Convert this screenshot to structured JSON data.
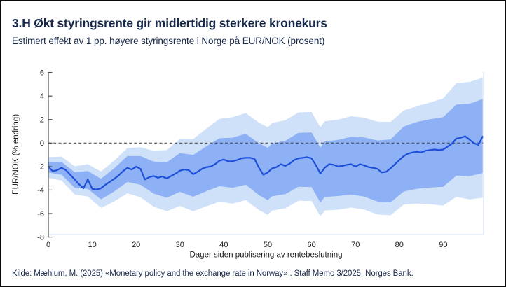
{
  "header": {
    "title": "3.H Økt styringsrente gir midlertidig sterkere kronekurs",
    "subtitle": "Estimert effekt av 1 pp. høyere styringsrente i Norge på EUR/NOK (prosent)"
  },
  "footer": {
    "source": "Kilde: Mæhlum, M. (2025) «Monetary policy and the exchange rate in Norway» . Staff Memo 3/2025. Norges Bank."
  },
  "colors": {
    "median_line": "#1d4fd8",
    "inner_band": "#8db1f4",
    "outer_band": "#cfe0f9",
    "zero_line": "#3c3c3c",
    "axis": "#4d4d4d",
    "frame": "#dbe4f6",
    "tick_text": "#1a1a1a",
    "heading_text": "#17284a"
  },
  "chart_data": {
    "type": "line",
    "title": "Estimert effekt av 1 pp. høyere styringsrente i Norge på EUR/NOK (prosent)",
    "xlabel": "Dager siden publisering av rentebeslutning",
    "ylabel": "EUR/NOK (% endring)",
    "xlim": [
      0,
      99.2
    ],
    "ylim": [
      -8,
      6
    ],
    "x_ticks": [
      0,
      10,
      20,
      30,
      40,
      50,
      60,
      70,
      80,
      90
    ],
    "y_ticks": [
      6,
      4,
      2,
      0,
      -2,
      -4,
      -6,
      -8
    ],
    "zero_reference": 0,
    "grid": false,
    "legend_position": "none",
    "series": [
      {
        "name": "median",
        "kind": "line",
        "x_start": 0,
        "x_step": 1,
        "values": [
          -2.0,
          -2.4,
          -2.3,
          -2.1,
          -2.3,
          -2.7,
          -3.1,
          -3.5,
          -3.85,
          -3.1,
          -3.9,
          -3.95,
          -3.85,
          -3.55,
          -3.3,
          -3.05,
          -2.75,
          -2.4,
          -2.1,
          -2.25,
          -2.0,
          -2.2,
          -3.1,
          -2.9,
          -2.8,
          -2.95,
          -2.85,
          -3.0,
          -2.8,
          -2.6,
          -2.35,
          -2.25,
          -2.3,
          -2.65,
          -2.45,
          -2.2,
          -2.05,
          -2.0,
          -1.8,
          -1.5,
          -1.4,
          -1.55,
          -1.55,
          -1.45,
          -1.3,
          -1.25,
          -1.25,
          -1.35,
          -2.1,
          -2.7,
          -2.5,
          -2.15,
          -2.05,
          -1.8,
          -1.95,
          -1.75,
          -1.45,
          -1.3,
          -1.25,
          -1.2,
          -1.3,
          -1.9,
          -2.6,
          -2.1,
          -1.8,
          -1.85,
          -2.0,
          -1.95,
          -1.85,
          -1.8,
          -2.0,
          -1.8,
          -1.9,
          -2.05,
          -2.1,
          -2.2,
          -2.5,
          -2.45,
          -2.15,
          -1.8,
          -1.45,
          -1.1,
          -0.9,
          -0.8,
          -0.75,
          -0.8,
          -0.65,
          -0.6,
          -0.55,
          -0.6,
          -0.55,
          -0.3,
          -0.05,
          0.38,
          0.45,
          0.57,
          0.3,
          -0.02,
          -0.15,
          0.55
        ]
      },
      {
        "name": "inner-band",
        "kind": "band",
        "x": [
          0,
          3,
          6,
          9,
          12,
          15,
          18,
          21,
          24,
          27,
          30,
          33,
          36,
          39,
          42,
          45,
          48,
          50,
          51,
          54,
          57,
          60,
          62,
          63,
          66,
          69,
          72,
          75,
          78,
          81,
          84,
          87,
          90,
          93,
          96,
          99
        ],
        "upper": [
          -1.6,
          -1.6,
          -2.48,
          -2.38,
          -3.04,
          -2.15,
          -1.11,
          -1.11,
          -1.57,
          -1.64,
          -0.85,
          -1.01,
          -0.28,
          0.41,
          0.46,
          0.79,
          -0.02,
          -0.4,
          -0.04,
          0.19,
          0.87,
          0.9,
          -0.38,
          0.13,
          0.27,
          0.53,
          0.48,
          0.22,
          0.31,
          1.4,
          1.79,
          2.03,
          2.21,
          3.28,
          3.34,
          3.75
        ],
        "lower": [
          -2.5,
          -2.7,
          -3.8,
          -3.91,
          -4.79,
          -4.12,
          -3.31,
          -3.55,
          -4.3,
          -4.65,
          -4.15,
          -4.57,
          -4.1,
          -3.67,
          -3.81,
          -3.55,
          -4.44,
          -4.86,
          -4.52,
          -4.35,
          -3.72,
          -3.75,
          -5.07,
          -4.58,
          -4.51,
          -4.38,
          -4.56,
          -4.98,
          -5.05,
          -4.12,
          -3.89,
          -3.79,
          -3.72,
          -2.77,
          -2.82,
          -2.55
        ]
      },
      {
        "name": "outer-band",
        "kind": "band",
        "x": [
          0,
          3,
          6,
          9,
          12,
          15,
          18,
          21,
          24,
          27,
          30,
          33,
          36,
          39,
          42,
          45,
          48,
          50,
          51,
          54,
          57,
          60,
          62,
          63,
          66,
          69,
          72,
          75,
          78,
          81,
          84,
          87,
          90,
          93,
          96,
          99
        ],
        "upper": [
          -1.2,
          -1.15,
          -1.98,
          -1.8,
          -2.42,
          -1.5,
          -0.43,
          -0.36,
          -0.67,
          -0.59,
          0.35,
          0.34,
          1.22,
          2.06,
          2.21,
          2.55,
          1.73,
          1.35,
          1.71,
          1.94,
          2.61,
          2.64,
          1.35,
          1.86,
          1.99,
          2.28,
          2.17,
          1.82,
          1.8,
          2.78,
          3.13,
          3.45,
          3.8,
          5.08,
          5.2,
          5.55
        ],
        "lower": [
          -2.95,
          -3.2,
          -4.38,
          -4.55,
          -5.52,
          -4.97,
          -4.28,
          -4.61,
          -5.41,
          -5.8,
          -5.35,
          -5.81,
          -5.38,
          -4.99,
          -5.16,
          -4.86,
          -5.7,
          -6.1,
          -5.75,
          -5.55,
          -4.91,
          -4.93,
          -6.24,
          -5.75,
          -5.67,
          -5.49,
          -5.66,
          -6.08,
          -6.15,
          -5.24,
          -5.15,
          -5.2,
          -5.32,
          -4.57,
          -4.8,
          -4.65
        ]
      }
    ]
  }
}
